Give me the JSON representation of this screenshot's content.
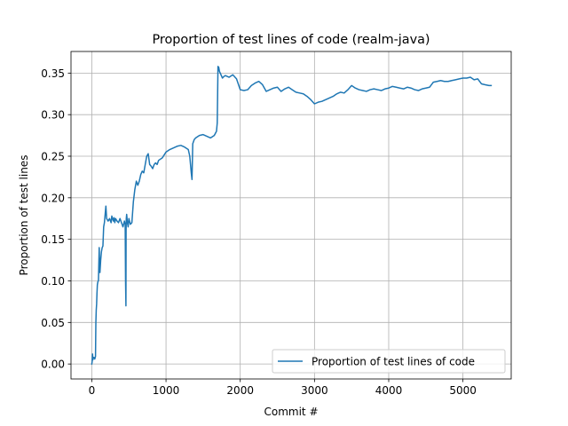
{
  "chart_data": {
    "type": "line",
    "title": "Proportion of test lines of code (realm-java)",
    "xlabel": "Commit #",
    "ylabel": "Proportion of test lines",
    "xlim": [
      -280,
      5650
    ],
    "ylim": [
      -0.018,
      0.376
    ],
    "xticks": [
      0,
      1000,
      2000,
      3000,
      4000,
      5000
    ],
    "xtick_labels": [
      "0",
      "1000",
      "2000",
      "3000",
      "4000",
      "5000"
    ],
    "yticks": [
      0.0,
      0.05,
      0.1,
      0.15,
      0.2,
      0.25,
      0.3,
      0.35
    ],
    "ytick_labels": [
      "0.00",
      "0.05",
      "0.10",
      "0.15",
      "0.20",
      "0.25",
      "0.30",
      "0.35"
    ],
    "grid": true,
    "legend_position": "lower-right",
    "series": [
      {
        "name": "Proportion of test lines of code",
        "color": "#1f77b4",
        "x": [
          0,
          5,
          10,
          15,
          20,
          30,
          40,
          50,
          55,
          60,
          65,
          70,
          75,
          80,
          90,
          100,
          110,
          120,
          130,
          140,
          150,
          160,
          170,
          180,
          190,
          200,
          220,
          240,
          260,
          270,
          280,
          290,
          300,
          310,
          320,
          340,
          360,
          380,
          400,
          420,
          440,
          450,
          455,
          460,
          462,
          465,
          470,
          480,
          490,
          500,
          520,
          540,
          560,
          580,
          600,
          620,
          640,
          660,
          680,
          700,
          720,
          740,
          760,
          780,
          800,
          820,
          840,
          860,
          880,
          900,
          950,
          1000,
          1050,
          1100,
          1150,
          1200,
          1250,
          1300,
          1320,
          1340,
          1350,
          1360,
          1380,
          1400,
          1450,
          1500,
          1550,
          1600,
          1650,
          1680,
          1690,
          1695,
          1700,
          1710,
          1720,
          1740,
          1760,
          1780,
          1800,
          1850,
          1900,
          1950,
          2000,
          2050,
          2100,
          2150,
          2200,
          2250,
          2300,
          2350,
          2400,
          2450,
          2500,
          2550,
          2600,
          2650,
          2700,
          2750,
          2800,
          2850,
          2900,
          2950,
          3000,
          3050,
          3100,
          3150,
          3200,
          3250,
          3300,
          3350,
          3400,
          3450,
          3500,
          3550,
          3600,
          3650,
          3700,
          3750,
          3800,
          3850,
          3900,
          3950,
          4000,
          4050,
          4100,
          4150,
          4200,
          4250,
          4300,
          4350,
          4400,
          4450,
          4500,
          4550,
          4600,
          4650,
          4700,
          4750,
          4800,
          4850,
          4900,
          4950,
          5000,
          5050,
          5100,
          5150,
          5200,
          5250,
          5300,
          5350,
          5380
        ],
        "y": [
          0.0,
          0.003,
          0.012,
          0.005,
          0.007,
          0.008,
          0.006,
          0.009,
          0.05,
          0.065,
          0.072,
          0.085,
          0.095,
          0.098,
          0.101,
          0.14,
          0.11,
          0.125,
          0.135,
          0.14,
          0.142,
          0.165,
          0.17,
          0.18,
          0.19,
          0.175,
          0.172,
          0.175,
          0.17,
          0.178,
          0.175,
          0.172,
          0.176,
          0.17,
          0.175,
          0.172,
          0.17,
          0.175,
          0.17,
          0.165,
          0.172,
          0.168,
          0.1,
          0.07,
          0.16,
          0.175,
          0.18,
          0.17,
          0.165,
          0.175,
          0.168,
          0.17,
          0.195,
          0.21,
          0.22,
          0.215,
          0.22,
          0.228,
          0.232,
          0.23,
          0.24,
          0.25,
          0.253,
          0.24,
          0.238,
          0.235,
          0.24,
          0.242,
          0.24,
          0.245,
          0.248,
          0.255,
          0.258,
          0.26,
          0.262,
          0.263,
          0.261,
          0.258,
          0.25,
          0.23,
          0.222,
          0.265,
          0.27,
          0.272,
          0.275,
          0.276,
          0.274,
          0.272,
          0.275,
          0.28,
          0.29,
          0.322,
          0.358,
          0.357,
          0.352,
          0.348,
          0.344,
          0.346,
          0.347,
          0.345,
          0.348,
          0.343,
          0.33,
          0.329,
          0.33,
          0.335,
          0.338,
          0.34,
          0.336,
          0.328,
          0.33,
          0.332,
          0.333,
          0.328,
          0.331,
          0.333,
          0.33,
          0.327,
          0.326,
          0.325,
          0.322,
          0.318,
          0.313,
          0.315,
          0.316,
          0.318,
          0.32,
          0.322,
          0.325,
          0.327,
          0.326,
          0.33,
          0.335,
          0.332,
          0.33,
          0.329,
          0.328,
          0.33,
          0.331,
          0.33,
          0.329,
          0.331,
          0.332,
          0.334,
          0.333,
          0.332,
          0.331,
          0.333,
          0.332,
          0.33,
          0.329,
          0.331,
          0.332,
          0.333,
          0.339,
          0.34,
          0.341,
          0.34,
          0.34,
          0.341,
          0.342,
          0.343,
          0.344,
          0.344,
          0.345,
          0.342,
          0.343,
          0.337,
          0.336,
          0.335,
          0.335
        ]
      }
    ]
  }
}
